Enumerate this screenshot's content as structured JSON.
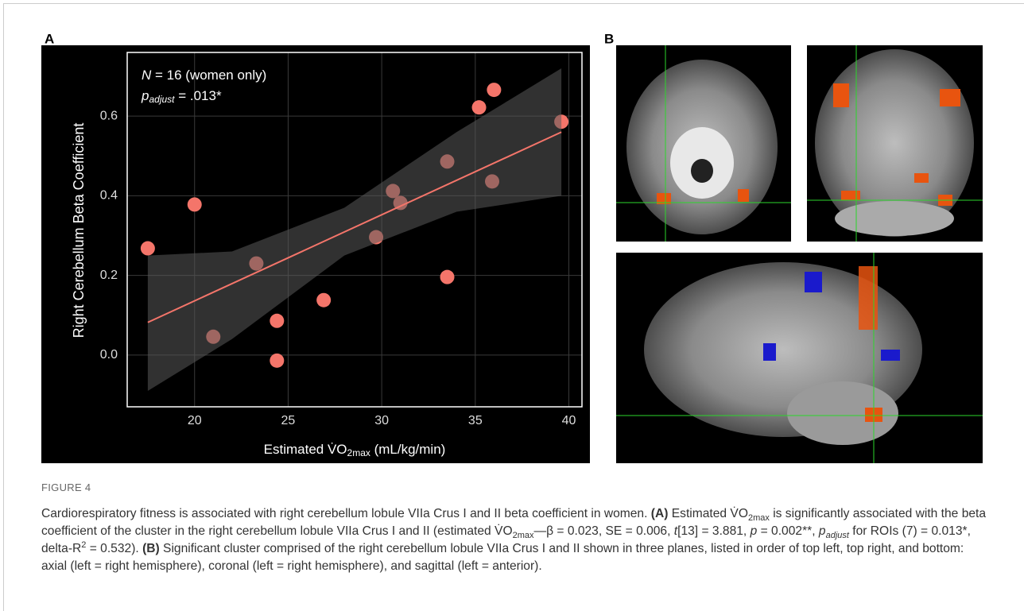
{
  "panels": {
    "a_label": "A",
    "b_label": "B"
  },
  "chart_data": {
    "type": "scatter",
    "y_label": "Right Cerebellum Beta Coefficient",
    "x_label": {
      "pre": "Estimated V̇O",
      "sub": "2max",
      "post": " (mL/kg/min)"
    },
    "annotations": {
      "n_label": "N",
      "n_text": " = 16 (women only)",
      "p_label": "p",
      "p_sub": "adjust",
      "p_text": " = .013*"
    },
    "x": [
      17.5,
      20.0,
      21.0,
      23.3,
      24.4,
      24.4,
      26.9,
      29.7,
      30.6,
      31.0,
      33.5,
      33.5,
      35.2,
      36.0,
      35.9,
      39.6
    ],
    "values": [
      0.268,
      0.378,
      0.046,
      0.23,
      0.086,
      -0.014,
      0.138,
      0.296,
      0.412,
      0.382,
      0.486,
      0.196,
      0.622,
      0.666,
      0.436,
      0.586
    ],
    "color": "#f4756a",
    "fit": {
      "color": "#f4756a",
      "x": [
        17.5,
        39.6
      ],
      "y": [
        0.082,
        0.56
      ]
    },
    "band": {
      "color": "#5a5a5a",
      "x": [
        17.5,
        22,
        28,
        34,
        39.6
      ],
      "lower": [
        -0.09,
        0.04,
        0.25,
        0.36,
        0.4
      ],
      "upper": [
        0.25,
        0.26,
        0.37,
        0.56,
        0.72
      ]
    },
    "xlim": [
      16.4,
      40.7
    ],
    "ylim": [
      -0.13,
      0.76
    ],
    "xticks": [
      20,
      25,
      30,
      35,
      40
    ],
    "yticks": [
      {
        "value": 0,
        "label": "0.0"
      },
      0.2,
      0.4,
      0.6
    ],
    "grid": true
  },
  "caption": {
    "label": "FIGURE 4",
    "segments": [
      {
        "text": "Cardiorespiratory fitness is associated with right cerebellum lobule VIIa Crus I and II beta coefficient in women. "
      },
      {
        "text": "(A)",
        "style": "bold"
      },
      {
        "text": " Estimated V̇O"
      },
      {
        "text": "2max",
        "style": "sub"
      },
      {
        "text": " is significantly associated with the beta coefficient of the cluster in the right cerebellum lobule VIIa Crus I and II (estimated V̇O"
      },
      {
        "text": "2max",
        "style": "sub"
      },
      {
        "text": "—β = 0.023, SE = 0.006, "
      },
      {
        "text": "t",
        "style": "italic"
      },
      {
        "text": "[13] = 3.881, "
      },
      {
        "text": "p",
        "style": "italic"
      },
      {
        "text": " = 0.002**, "
      },
      {
        "text": "p",
        "style": "italic"
      },
      {
        "text": "adjust",
        "style": "italic-sub"
      },
      {
        "text": " for ROIs (7) = 0.013*, delta-R"
      },
      {
        "text": "2",
        "style": "sup"
      },
      {
        "text": " = 0.532). "
      },
      {
        "text": "(B)",
        "style": "bold"
      },
      {
        "text": " Significant cluster comprised of the right cerebellum lobule VIIa Crus I and II shown in three planes, listed in order of top left, top right, and bottom: axial (left = right hemisphere), coronal (left = right hemisphere), and sagittal (left = anterior)."
      }
    ]
  }
}
